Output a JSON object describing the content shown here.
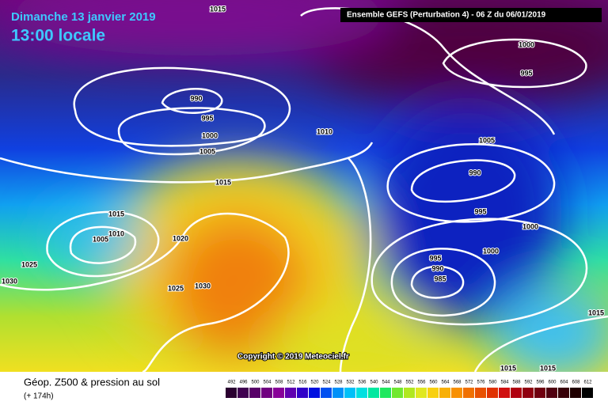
{
  "header": {
    "date": "Dimanche 13 janvier 2019",
    "time": "13:00 locale",
    "run": "Ensemble GEFS  (Perturbation 4)  -  06 Z du 06/01/2019"
  },
  "isobar_labels": [
    "1015",
    "1000",
    "995",
    "990",
    "995",
    "1000",
    "1005",
    "1010",
    "1005",
    "990",
    "1015",
    "995",
    "1015",
    "1010",
    "1005",
    "1020",
    "1000",
    "1000",
    "995",
    "990",
    "985",
    "1025",
    "1030",
    "1025",
    "1030",
    "1015",
    "1015",
    "1015"
  ],
  "copyright": "Copyright © 2019 Meteociel.fr",
  "footer": {
    "title": "Géop. Z500 & pression au sol",
    "lead": "(+ 174h)"
  },
  "scale_labels": [
    "492",
    "496",
    "500",
    "504",
    "508",
    "512",
    "516",
    "520",
    "524",
    "528",
    "532",
    "536",
    "540",
    "544",
    "548",
    "552",
    "556",
    "560",
    "564",
    "568",
    "572",
    "576",
    "580",
    "584",
    "588",
    "592",
    "596",
    "600",
    "604",
    "608",
    "612"
  ]
}
